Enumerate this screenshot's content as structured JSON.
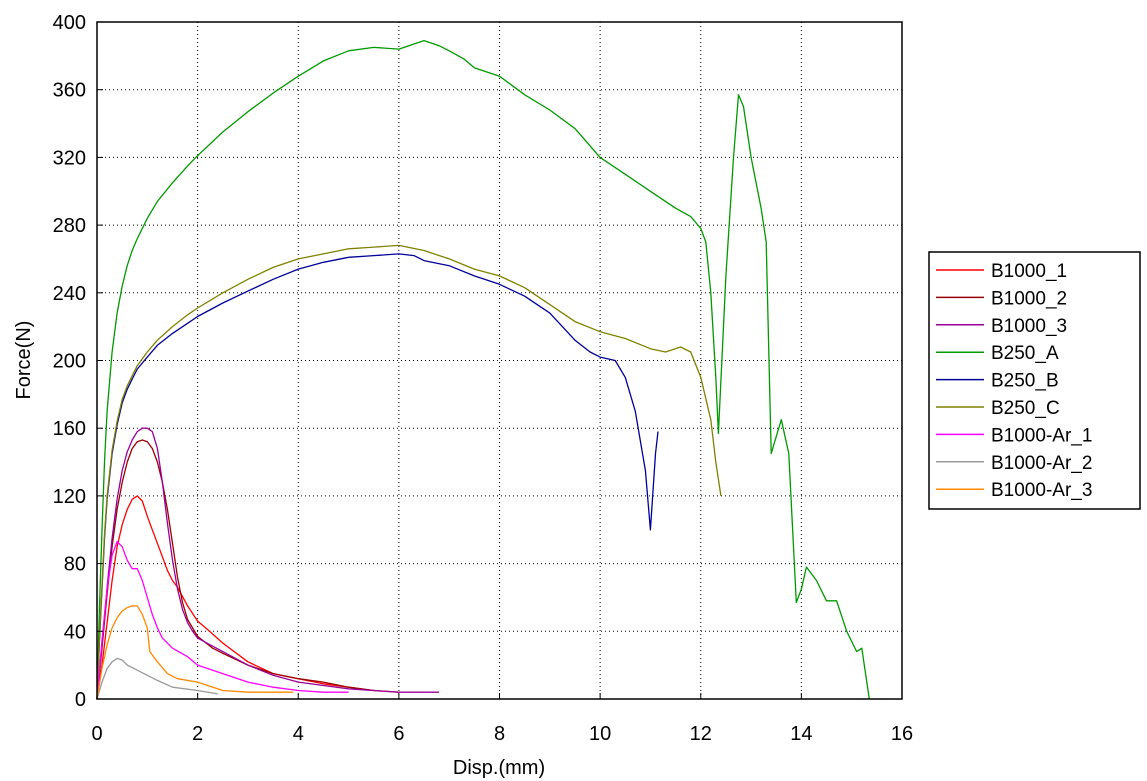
{
  "chart_data": {
    "type": "line",
    "title": "",
    "xlabel": "Disp.(mm)",
    "ylabel": "Force(N)",
    "xlim": [
      0,
      16
    ],
    "ylim": [
      0,
      400
    ],
    "x_ticks": [
      0,
      2,
      4,
      6,
      8,
      10,
      12,
      14,
      16
    ],
    "y_ticks": [
      0,
      40,
      80,
      120,
      160,
      200,
      240,
      280,
      320,
      360,
      400
    ],
    "grid": true,
    "legend_position": "right",
    "series": [
      {
        "name": "B1000_1",
        "color": "#ff0000",
        "points": [
          [
            0,
            0
          ],
          [
            0.1,
            20
          ],
          [
            0.2,
            45
          ],
          [
            0.3,
            70
          ],
          [
            0.4,
            90
          ],
          [
            0.5,
            103
          ],
          [
            0.6,
            112
          ],
          [
            0.7,
            118
          ],
          [
            0.8,
            120
          ],
          [
            0.9,
            117
          ],
          [
            1.0,
            108
          ],
          [
            1.1,
            100
          ],
          [
            1.2,
            92
          ],
          [
            1.3,
            84
          ],
          [
            1.4,
            76
          ],
          [
            1.5,
            70
          ],
          [
            1.6,
            66
          ],
          [
            1.8,
            55
          ],
          [
            2.0,
            46
          ],
          [
            2.2,
            41
          ],
          [
            2.5,
            33
          ],
          [
            3.0,
            22
          ],
          [
            3.5,
            15
          ],
          [
            4.0,
            12
          ],
          [
            4.5,
            9
          ],
          [
            5.0,
            7
          ],
          [
            5.5,
            5
          ],
          [
            6.0,
            4
          ]
        ]
      },
      {
        "name": "B1000_2",
        "color": "#990000",
        "points": [
          [
            0,
            0
          ],
          [
            0.1,
            30
          ],
          [
            0.2,
            62
          ],
          [
            0.3,
            90
          ],
          [
            0.4,
            112
          ],
          [
            0.5,
            128
          ],
          [
            0.6,
            140
          ],
          [
            0.7,
            148
          ],
          [
            0.8,
            152
          ],
          [
            0.9,
            153
          ],
          [
            1.0,
            152
          ],
          [
            1.1,
            148
          ],
          [
            1.2,
            140
          ],
          [
            1.3,
            128
          ],
          [
            1.4,
            112
          ],
          [
            1.5,
            92
          ],
          [
            1.6,
            72
          ],
          [
            1.7,
            57
          ],
          [
            1.8,
            47
          ],
          [
            2.0,
            37
          ],
          [
            2.3,
            30
          ],
          [
            2.5,
            27
          ],
          [
            3.0,
            20
          ],
          [
            3.5,
            15
          ],
          [
            4.0,
            12
          ],
          [
            4.5,
            10
          ],
          [
            5.0,
            7
          ],
          [
            5.5,
            5
          ]
        ]
      },
      {
        "name": "B1000_3",
        "color": "#990099",
        "points": [
          [
            0,
            0
          ],
          [
            0.1,
            32
          ],
          [
            0.2,
            66
          ],
          [
            0.3,
            95
          ],
          [
            0.4,
            118
          ],
          [
            0.5,
            135
          ],
          [
            0.6,
            146
          ],
          [
            0.7,
            153
          ],
          [
            0.8,
            158
          ],
          [
            0.9,
            160
          ],
          [
            1.0,
            160
          ],
          [
            1.1,
            158
          ],
          [
            1.2,
            148
          ],
          [
            1.3,
            128
          ],
          [
            1.4,
            104
          ],
          [
            1.5,
            82
          ],
          [
            1.6,
            65
          ],
          [
            1.7,
            53
          ],
          [
            1.8,
            45
          ],
          [
            1.9,
            40
          ],
          [
            2.0,
            36
          ],
          [
            2.5,
            28
          ],
          [
            3.0,
            20
          ],
          [
            3.5,
            14
          ],
          [
            4.0,
            10
          ],
          [
            5.0,
            6
          ],
          [
            6.0,
            4
          ],
          [
            6.8,
            4
          ]
        ]
      },
      {
        "name": "B250_A",
        "color": "#009900",
        "points": [
          [
            0,
            0
          ],
          [
            0.05,
            55
          ],
          [
            0.1,
            100
          ],
          [
            0.15,
            140
          ],
          [
            0.2,
            170
          ],
          [
            0.3,
            205
          ],
          [
            0.4,
            228
          ],
          [
            0.5,
            244
          ],
          [
            0.6,
            256
          ],
          [
            0.7,
            265
          ],
          [
            0.8,
            272
          ],
          [
            1.0,
            284
          ],
          [
            1.2,
            294
          ],
          [
            1.5,
            305
          ],
          [
            1.8,
            315
          ],
          [
            2.0,
            321
          ],
          [
            2.5,
            335
          ],
          [
            3.0,
            347
          ],
          [
            3.5,
            358
          ],
          [
            4.0,
            368
          ],
          [
            4.5,
            377
          ],
          [
            5.0,
            383
          ],
          [
            5.5,
            385
          ],
          [
            6.0,
            384
          ],
          [
            6.2,
            386
          ],
          [
            6.5,
            389
          ],
          [
            6.8,
            386
          ],
          [
            7.0,
            383
          ],
          [
            7.3,
            378
          ],
          [
            7.5,
            373
          ],
          [
            8.0,
            368
          ],
          [
            8.5,
            357
          ],
          [
            9.0,
            348
          ],
          [
            9.5,
            337
          ],
          [
            10.0,
            320
          ],
          [
            10.5,
            310
          ],
          [
            11.0,
            300
          ],
          [
            11.5,
            290
          ],
          [
            11.8,
            285
          ],
          [
            12.0,
            278
          ],
          [
            12.1,
            270
          ],
          [
            12.2,
            240
          ],
          [
            12.3,
            190
          ],
          [
            12.35,
            157
          ],
          [
            12.5,
            250
          ],
          [
            12.65,
            320
          ],
          [
            12.75,
            357
          ],
          [
            12.85,
            350
          ],
          [
            13.0,
            320
          ],
          [
            13.2,
            290
          ],
          [
            13.3,
            270
          ],
          [
            13.4,
            145
          ],
          [
            13.5,
            155
          ],
          [
            13.6,
            165
          ],
          [
            13.75,
            145
          ],
          [
            13.9,
            57
          ],
          [
            14.0,
            65
          ],
          [
            14.1,
            78
          ],
          [
            14.3,
            70
          ],
          [
            14.5,
            58
          ],
          [
            14.7,
            58
          ],
          [
            14.9,
            40
          ],
          [
            15.1,
            28
          ],
          [
            15.2,
            30
          ],
          [
            15.3,
            10
          ],
          [
            15.35,
            0
          ]
        ]
      },
      {
        "name": "B250_B",
        "color": "#000099",
        "points": [
          [
            0,
            0
          ],
          [
            0.05,
            35
          ],
          [
            0.1,
            65
          ],
          [
            0.15,
            95
          ],
          [
            0.2,
            118
          ],
          [
            0.3,
            145
          ],
          [
            0.4,
            162
          ],
          [
            0.5,
            175
          ],
          [
            0.6,
            183
          ],
          [
            0.7,
            189
          ],
          [
            0.8,
            195
          ],
          [
            1.0,
            202
          ],
          [
            1.2,
            209
          ],
          [
            1.5,
            216
          ],
          [
            1.8,
            222
          ],
          [
            2.0,
            226
          ],
          [
            2.5,
            234
          ],
          [
            3.0,
            241
          ],
          [
            3.5,
            248
          ],
          [
            4.0,
            254
          ],
          [
            4.5,
            258
          ],
          [
            5.0,
            261
          ],
          [
            5.5,
            262
          ],
          [
            6.0,
            263
          ],
          [
            6.3,
            262
          ],
          [
            6.5,
            259
          ],
          [
            7.0,
            256
          ],
          [
            7.5,
            250
          ],
          [
            8.0,
            245
          ],
          [
            8.5,
            238
          ],
          [
            9.0,
            228
          ],
          [
            9.5,
            212
          ],
          [
            9.8,
            205
          ],
          [
            10.0,
            202
          ],
          [
            10.3,
            200
          ],
          [
            10.5,
            190
          ],
          [
            10.7,
            170
          ],
          [
            10.9,
            135
          ],
          [
            11.0,
            100
          ],
          [
            11.1,
            145
          ],
          [
            11.15,
            158
          ]
        ]
      },
      {
        "name": "B250_C",
        "color": "#808000",
        "points": [
          [
            0,
            0
          ],
          [
            0.05,
            36
          ],
          [
            0.1,
            67
          ],
          [
            0.15,
            97
          ],
          [
            0.2,
            120
          ],
          [
            0.3,
            147
          ],
          [
            0.4,
            164
          ],
          [
            0.5,
            177
          ],
          [
            0.6,
            185
          ],
          [
            0.7,
            191
          ],
          [
            0.8,
            197
          ],
          [
            1.0,
            205
          ],
          [
            1.2,
            212
          ],
          [
            1.5,
            220
          ],
          [
            1.8,
            227
          ],
          [
            2.0,
            231
          ],
          [
            2.5,
            240
          ],
          [
            3.0,
            248
          ],
          [
            3.5,
            255
          ],
          [
            4.0,
            260
          ],
          [
            4.5,
            263
          ],
          [
            5.0,
            266
          ],
          [
            5.5,
            267
          ],
          [
            6.0,
            268
          ],
          [
            6.5,
            265
          ],
          [
            7.0,
            260
          ],
          [
            7.5,
            254
          ],
          [
            8.0,
            250
          ],
          [
            8.5,
            243
          ],
          [
            9.0,
            233
          ],
          [
            9.5,
            223
          ],
          [
            10.0,
            217
          ],
          [
            10.5,
            213
          ],
          [
            11.0,
            207
          ],
          [
            11.3,
            205
          ],
          [
            11.6,
            208
          ],
          [
            11.8,
            205
          ],
          [
            12.0,
            190
          ],
          [
            12.2,
            165
          ],
          [
            12.3,
            140
          ],
          [
            12.4,
            120
          ]
        ]
      },
      {
        "name": "B1000-Ar_1",
        "color": "#ff00ff",
        "points": [
          [
            0,
            0
          ],
          [
            0.1,
            35
          ],
          [
            0.2,
            65
          ],
          [
            0.3,
            85
          ],
          [
            0.4,
            93
          ],
          [
            0.5,
            90
          ],
          [
            0.6,
            82
          ],
          [
            0.7,
            77
          ],
          [
            0.8,
            77
          ],
          [
            0.9,
            70
          ],
          [
            1.0,
            60
          ],
          [
            1.1,
            50
          ],
          [
            1.2,
            42
          ],
          [
            1.3,
            36
          ],
          [
            1.5,
            30
          ],
          [
            1.8,
            25
          ],
          [
            2.0,
            20
          ],
          [
            2.5,
            15
          ],
          [
            3.0,
            10
          ],
          [
            3.5,
            7
          ],
          [
            4.0,
            5
          ],
          [
            4.5,
            4
          ],
          [
            5.0,
            4
          ]
        ]
      },
      {
        "name": "B1000-Ar_2",
        "color": "#999999",
        "points": [
          [
            0,
            0
          ],
          [
            0.1,
            10
          ],
          [
            0.2,
            18
          ],
          [
            0.3,
            22
          ],
          [
            0.4,
            24
          ],
          [
            0.5,
            23
          ],
          [
            0.6,
            20
          ],
          [
            0.8,
            17
          ],
          [
            1.0,
            14
          ],
          [
            1.2,
            11
          ],
          [
            1.5,
            7
          ],
          [
            2.0,
            5
          ],
          [
            2.4,
            3
          ]
        ]
      },
      {
        "name": "B1000-Ar_3",
        "color": "#ff8800",
        "points": [
          [
            0,
            0
          ],
          [
            0.1,
            18
          ],
          [
            0.2,
            32
          ],
          [
            0.3,
            42
          ],
          [
            0.4,
            48
          ],
          [
            0.5,
            52
          ],
          [
            0.6,
            54
          ],
          [
            0.7,
            55
          ],
          [
            0.8,
            55
          ],
          [
            0.9,
            50
          ],
          [
            1.0,
            42
          ],
          [
            1.05,
            28
          ],
          [
            1.2,
            22
          ],
          [
            1.4,
            15
          ],
          [
            1.6,
            12
          ],
          [
            2.0,
            10
          ],
          [
            2.5,
            5
          ],
          [
            3.0,
            4
          ],
          [
            3.5,
            4
          ],
          [
            3.9,
            4
          ]
        ]
      }
    ]
  }
}
